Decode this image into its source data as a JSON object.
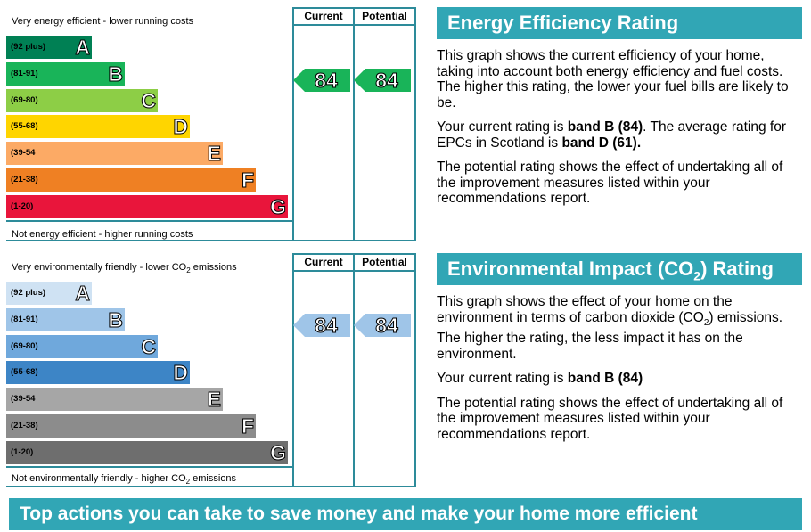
{
  "energy": {
    "top_note": "Very energy efficient - lower running costs",
    "bottom_note": "Not energy efficient - higher running costs",
    "col_current": "Current",
    "col_potential": "Potential",
    "bands": [
      {
        "range": "(92 plus)",
        "letter": "A",
        "color": "#008054"
      },
      {
        "range": "(81-91)",
        "letter": "B",
        "color": "#19b459"
      },
      {
        "range": "(69-80)",
        "letter": "C",
        "color": "#8dce46"
      },
      {
        "range": "(55-68)",
        "letter": "D",
        "color": "#ffd500"
      },
      {
        "range": "(39-54",
        "letter": "E",
        "color": "#fcaa65"
      },
      {
        "range": "(21-38)",
        "letter": "F",
        "color": "#ef8023"
      },
      {
        "range": "(1-20)",
        "letter": "G",
        "color": "#e9153b"
      }
    ],
    "current": "84",
    "potential": "84",
    "marker_color": "#19b459"
  },
  "environment": {
    "top_note": "Very environmentally friendly - lower CO",
    "top_note_sub": "2",
    "top_note_end": " emissions",
    "bottom_note": "Not environmentally friendly - higher CO",
    "bottom_note_sub": "2",
    "bottom_note_end": " emissions",
    "col_current": "Current",
    "col_potential": "Potential",
    "bands": [
      {
        "range": "(92 plus)",
        "letter": "A",
        "color": "#cfe2f3"
      },
      {
        "range": "(81-91)",
        "letter": "B",
        "color": "#9fc5e8"
      },
      {
        "range": "(69-80)",
        "letter": "C",
        "color": "#6fa8dc"
      },
      {
        "range": "(55-68)",
        "letter": "D",
        "color": "#3d85c6"
      },
      {
        "range": "(39-54",
        "letter": "E",
        "color": "#a6a6a6"
      },
      {
        "range": "(21-38)",
        "letter": "F",
        "color": "#8c8c8c"
      },
      {
        "range": "(1-20)",
        "letter": "G",
        "color": "#6e6e6e"
      }
    ],
    "current": "84",
    "potential": "84",
    "marker_color": "#9fc5e8"
  },
  "energy_panel": {
    "title": "Energy Efficiency Rating",
    "p1": "This graph shows the current efficiency of your home, taking into account both energy efficiency and fuel costs. The higher this rating, the lower your fuel bills are likely to be.",
    "p2_pre": "Your current rating is ",
    "p2_bold1": "band B (84)",
    "p2_mid": ". The average rating for EPCs in Scotland is ",
    "p2_bold2": "band D (61).",
    "p3": "The potential rating shows the effect of undertaking all of the improvement measures listed within your recommendations report."
  },
  "env_panel": {
    "title_pre": "Environmental Impact (CO",
    "title_sub": "2",
    "title_post": ") Rating",
    "p1_pre": "This graph shows the effect of your home on the environment in terms of carbon dioxide (CO",
    "p1_sub": "2",
    "p1_post": ") emissions. The higher the rating, the less impact it has on the environment.",
    "p2_pre": "Your current rating is ",
    "p2_bold": "band B (84)",
    "p3": "The potential rating shows the effect of undertaking all of the improvement measures listed within your recommendations report."
  },
  "actions_title": "Top actions you can take to save money and make your home more efficient"
}
